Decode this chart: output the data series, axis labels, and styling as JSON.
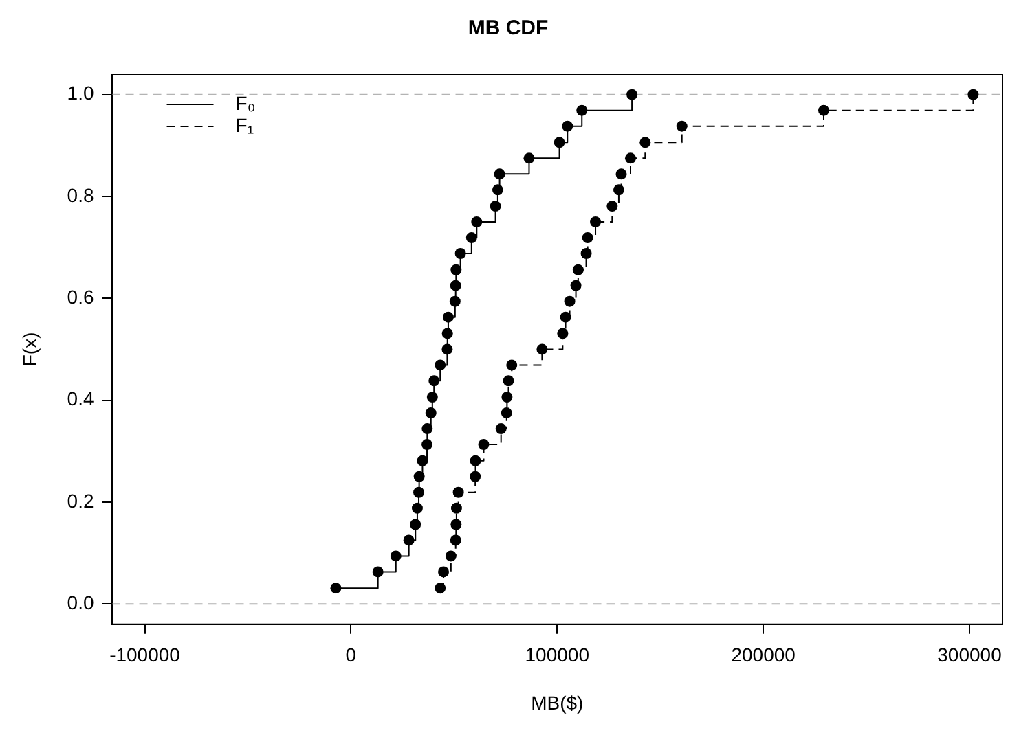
{
  "chart_data": {
    "type": "step",
    "title": "MB CDF",
    "xlabel": "MB($)",
    "ylabel": "F(x)",
    "xlim": [
      -116000,
      316000
    ],
    "xticks": [
      -100000,
      0,
      100000,
      200000,
      300000
    ],
    "ylim": [
      -0.04,
      1.04
    ],
    "yticks": [
      {
        "value": 0,
        "label": "0.0"
      },
      0.2,
      0.4,
      0.6,
      0.8,
      {
        "value": 1,
        "label": "1.0"
      }
    ],
    "grid": false,
    "legend": "top left",
    "marker": "circle",
    "ref_lines": [
      {
        "axis": "y",
        "value": 0,
        "color": "#b3b3b3",
        "line_style": "dashed"
      },
      {
        "axis": "y",
        "value": 1,
        "color": "#b3b3b3",
        "line_style": "dashed"
      }
    ],
    "series": [
      {
        "name": "F₀",
        "color": "#000000",
        "line_style": "solid",
        "x": [
          -7300,
          13100,
          21800,
          28100,
          31300,
          32200,
          32900,
          33100,
          34700,
          36900,
          37000,
          38800,
          39500,
          40300,
          43300,
          46700,
          46800,
          47200,
          50500,
          50800,
          51000,
          53100,
          58500,
          61000,
          70100,
          71200,
          72100,
          86400,
          101100,
          105000,
          112000,
          136300
        ],
        "values": [
          0.031,
          0.063,
          0.094,
          0.125,
          0.156,
          0.188,
          0.219,
          0.25,
          0.281,
          0.313,
          0.344,
          0.375,
          0.406,
          0.438,
          0.469,
          0.5,
          0.531,
          0.563,
          0.594,
          0.625,
          0.656,
          0.688,
          0.719,
          0.75,
          0.781,
          0.813,
          0.844,
          0.875,
          0.906,
          0.938,
          0.969,
          1
        ]
      },
      {
        "name": "F₁",
        "color": "#000000",
        "line_style": "dashed",
        "x": [
          43300,
          44900,
          48500,
          50800,
          51000,
          51200,
          52100,
          60300,
          60400,
          64400,
          72800,
          75500,
          75700,
          76400,
          78000,
          92700,
          102700,
          104100,
          106100,
          109100,
          110200,
          114100,
          114800,
          118600,
          126700,
          129900,
          131100,
          135600,
          142700,
          160500,
          229300,
          301800
        ],
        "values": [
          0.031,
          0.063,
          0.094,
          0.125,
          0.156,
          0.188,
          0.219,
          0.25,
          0.281,
          0.313,
          0.344,
          0.375,
          0.406,
          0.438,
          0.469,
          0.5,
          0.531,
          0.563,
          0.594,
          0.625,
          0.656,
          0.688,
          0.719,
          0.75,
          0.781,
          0.813,
          0.844,
          0.875,
          0.906,
          0.938,
          0.969,
          1
        ]
      }
    ]
  }
}
